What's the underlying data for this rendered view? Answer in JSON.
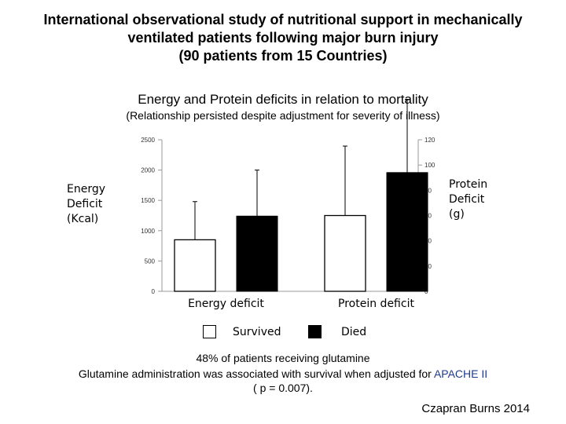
{
  "header": {
    "title_lines": [
      "International observational study of nutritional support in mechanically",
      "ventilated patients following major burn injury",
      "(90 patients from 15 Countries)"
    ],
    "subtitle": "Energy and Protein deficits in relation to mortality",
    "subnote": "(Relationship persisted despite adjustment for severity of illness)"
  },
  "chart_data": {
    "type": "bar",
    "title": "Energy and Protein deficits in relation to mortality",
    "categories": [
      "Energy deficit",
      "Protein deficit"
    ],
    "series": [
      {
        "name": "Survived",
        "values": [
          850,
          60
        ],
        "error_upper": [
          1480,
          115
        ],
        "color": "#ffffff"
      },
      {
        "name": "Died",
        "values": [
          1240,
          94
        ],
        "error_upper": [
          2000,
          152
        ],
        "color": "#000000"
      }
    ],
    "left_axis": {
      "label_lines": [
        "Energy",
        "Deficit",
        "(Kcal)"
      ],
      "ylim": [
        0,
        2500
      ],
      "ticks": [
        "0",
        "500",
        "1000",
        "1500",
        "2000",
        "2500"
      ]
    },
    "right_axis": {
      "label_lines": [
        "Protein",
        "Deficit",
        "(g)"
      ],
      "ylim": [
        0,
        120
      ],
      "ticks": [
        "0",
        "20",
        "40",
        "60",
        "80",
        "100",
        "120"
      ]
    },
    "legend_placement": "bottom",
    "grid": false
  },
  "legend": {
    "survived": "Survived",
    "died": "Died"
  },
  "footnotes": {
    "line1": "48% of patients receiving glutamine",
    "line2_prefix": "Glutamine administration was associated with survival when adjusted for ",
    "line2_highlight": "APACHE II",
    "line3": "( p = 0.007)."
  },
  "credit": "Czapran Burns 2014"
}
